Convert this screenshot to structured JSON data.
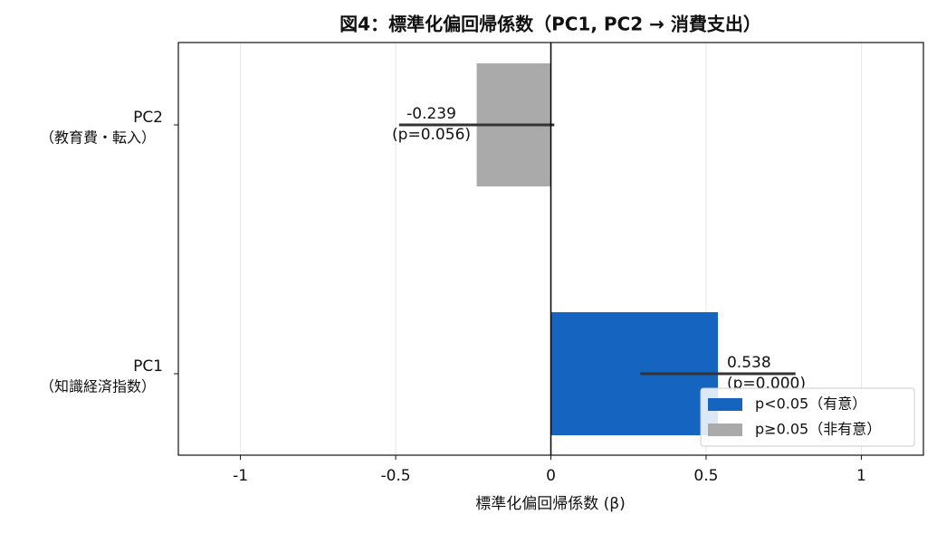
{
  "chart_data": {
    "type": "barh",
    "title": "図4：標準化偏回帰係数（PC1, PC2 → 消費支出）",
    "xlabel": "標準化偏回帰係数 (β)",
    "categories": [
      "PC1",
      "PC2"
    ],
    "category_subtitles": [
      "（知識経済指数）",
      "（教育費・転入）"
    ],
    "values": [
      0.538,
      -0.239
    ],
    "errors": [
      0.25,
      0.25
    ],
    "p_labels": [
      "(p=0.000)",
      "(p=0.056)"
    ],
    "colors": [
      "#1565c0",
      "#aaaaaa"
    ],
    "xlim": [
      -1.2,
      1.2
    ],
    "xticks": [
      -1.0,
      -0.5,
      0.0,
      0.5,
      1.0
    ],
    "grid": true,
    "legend": {
      "position": "lower right",
      "entries": [
        {
          "name": "p<0.05（有意）",
          "color": "#1565c0"
        },
        {
          "name": "p≥0.05（非有意）",
          "color": "#aaaaaa"
        }
      ]
    }
  }
}
